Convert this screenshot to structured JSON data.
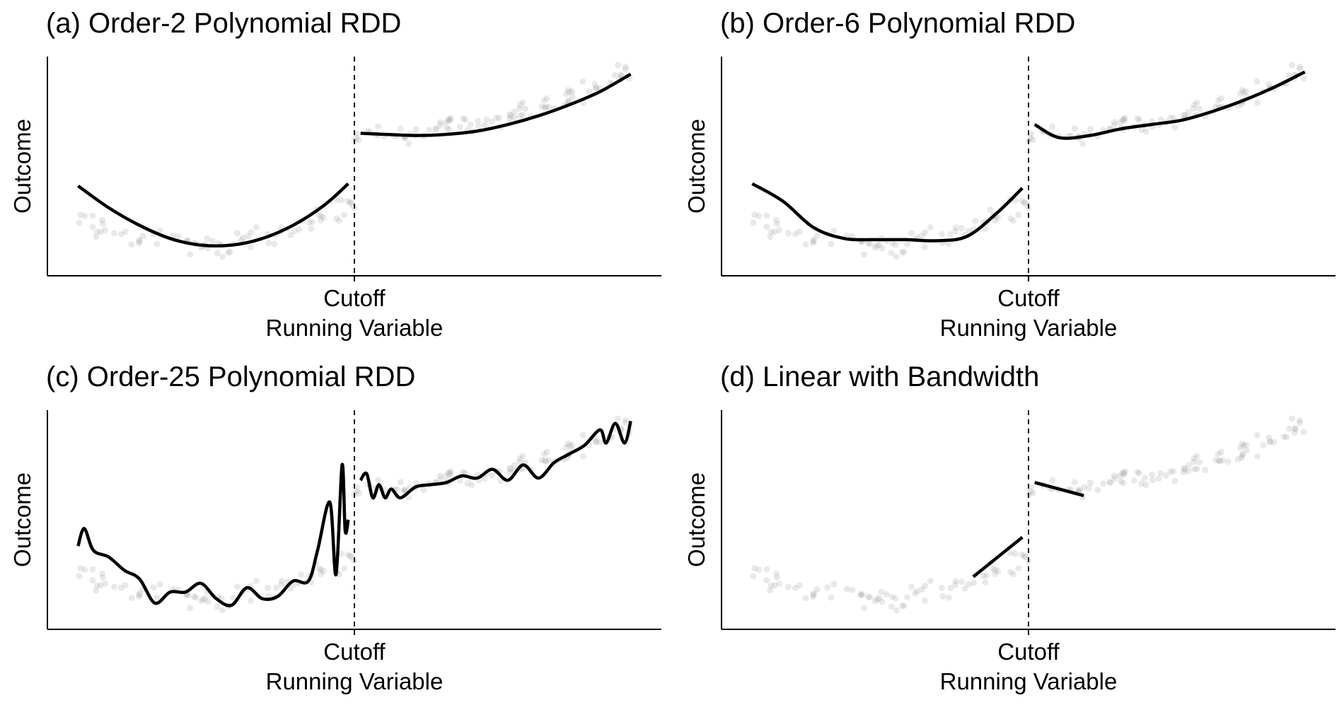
{
  "figure": {
    "note": ""
  },
  "chart_data": [
    {
      "type": "scatter",
      "title": "(a) Order-2 Polynomial RDD",
      "xlabel": "Running Variable",
      "ylabel": "Outcome",
      "x_ticks": [
        {
          "x": 0,
          "label": "Cutoff"
        }
      ],
      "xlim": [
        -1,
        1
      ],
      "ylim": [
        0,
        1
      ],
      "cutoff": 0,
      "cutoff_line": "dashed",
      "grid": false,
      "fit": "order-2 polynomial, each side of cutoff",
      "fit_left": {
        "x": [
          -0.9,
          -0.8,
          -0.7,
          -0.6,
          -0.5,
          -0.4,
          -0.3,
          -0.2,
          -0.1,
          -0.02
        ],
        "y": [
          0.41,
          0.31,
          0.23,
          0.17,
          0.14,
          0.14,
          0.17,
          0.23,
          0.32,
          0.42
        ]
      },
      "fit_right": {
        "x": [
          0.02,
          0.1,
          0.2,
          0.3,
          0.4,
          0.5,
          0.6,
          0.7,
          0.8,
          0.9
        ],
        "y": [
          0.65,
          0.645,
          0.64,
          0.645,
          0.66,
          0.69,
          0.73,
          0.78,
          0.84,
          0.92
        ]
      }
    },
    {
      "type": "scatter",
      "title": "(b) Order-6 Polynomial RDD",
      "xlabel": "Running Variable",
      "ylabel": "Outcome",
      "x_ticks": [
        {
          "x": 0,
          "label": "Cutoff"
        }
      ],
      "xlim": [
        -1,
        1
      ],
      "ylim": [
        0,
        1
      ],
      "cutoff": 0,
      "cutoff_line": "dashed",
      "grid": false,
      "fit": "order-6 polynomial, each side of cutoff",
      "fit_left": {
        "x": [
          -0.9,
          -0.8,
          -0.7,
          -0.6,
          -0.5,
          -0.4,
          -0.3,
          -0.2,
          -0.1,
          -0.02
        ],
        "y": [
          0.42,
          0.34,
          0.22,
          0.17,
          0.165,
          0.165,
          0.16,
          0.18,
          0.29,
          0.4
        ]
      },
      "fit_right": {
        "x": [
          0.02,
          0.1,
          0.2,
          0.3,
          0.4,
          0.5,
          0.6,
          0.7,
          0.8,
          0.9
        ],
        "y": [
          0.69,
          0.63,
          0.64,
          0.67,
          0.69,
          0.71,
          0.75,
          0.8,
          0.86,
          0.93
        ]
      }
    },
    {
      "type": "scatter",
      "title": "(c) Order-25 Polynomial RDD",
      "xlabel": "Running Variable",
      "ylabel": "Outcome",
      "x_ticks": [
        {
          "x": 0,
          "label": "Cutoff"
        }
      ],
      "xlim": [
        -1,
        1
      ],
      "ylim": [
        0,
        1
      ],
      "cutoff": 0,
      "cutoff_line": "dashed",
      "grid": false,
      "fit": "order-25 polynomial, each side of cutoff",
      "fit_left": {
        "x": [
          -0.9,
          -0.88,
          -0.85,
          -0.8,
          -0.75,
          -0.7,
          -0.65,
          -0.6,
          -0.55,
          -0.5,
          -0.45,
          -0.4,
          -0.35,
          -0.3,
          -0.25,
          -0.2,
          -0.15,
          -0.12,
          -0.08,
          -0.06,
          -0.04,
          -0.03,
          -0.02
        ],
        "y": [
          0.38,
          0.46,
          0.36,
          0.33,
          0.27,
          0.23,
          0.12,
          0.17,
          0.17,
          0.21,
          0.14,
          0.11,
          0.19,
          0.14,
          0.15,
          0.22,
          0.22,
          0.36,
          0.58,
          0.25,
          0.75,
          0.45,
          0.5
        ]
      },
      "fit_right": {
        "x": [
          0.02,
          0.04,
          0.06,
          0.08,
          0.1,
          0.12,
          0.15,
          0.2,
          0.25,
          0.3,
          0.35,
          0.4,
          0.45,
          0.5,
          0.55,
          0.6,
          0.65,
          0.7,
          0.75,
          0.8,
          0.82,
          0.85,
          0.88,
          0.9
        ],
        "y": [
          0.68,
          0.71,
          0.6,
          0.66,
          0.6,
          0.64,
          0.6,
          0.65,
          0.66,
          0.67,
          0.7,
          0.69,
          0.73,
          0.68,
          0.75,
          0.69,
          0.76,
          0.8,
          0.84,
          0.91,
          0.85,
          0.94,
          0.85,
          0.95
        ]
      }
    },
    {
      "type": "scatter",
      "title": "(d) Linear with Bandwidth",
      "xlabel": "Running Variable",
      "ylabel": "Outcome",
      "x_ticks": [
        {
          "x": 0,
          "label": "Cutoff"
        }
      ],
      "xlim": [
        -1,
        1
      ],
      "ylim": [
        0,
        1
      ],
      "cutoff": 0,
      "cutoff_line": "dashed",
      "grid": false,
      "fit": "linear within bandwidth",
      "fit_left": {
        "x": [
          -0.18,
          -0.02
        ],
        "y": [
          0.24,
          0.42
        ]
      },
      "fit_right": {
        "x": [
          0.02,
          0.18
        ],
        "y": [
          0.67,
          0.61
        ]
      }
    }
  ],
  "colors": {
    "points": "#999999",
    "fit_line": "#000000",
    "axis": "#000000"
  }
}
